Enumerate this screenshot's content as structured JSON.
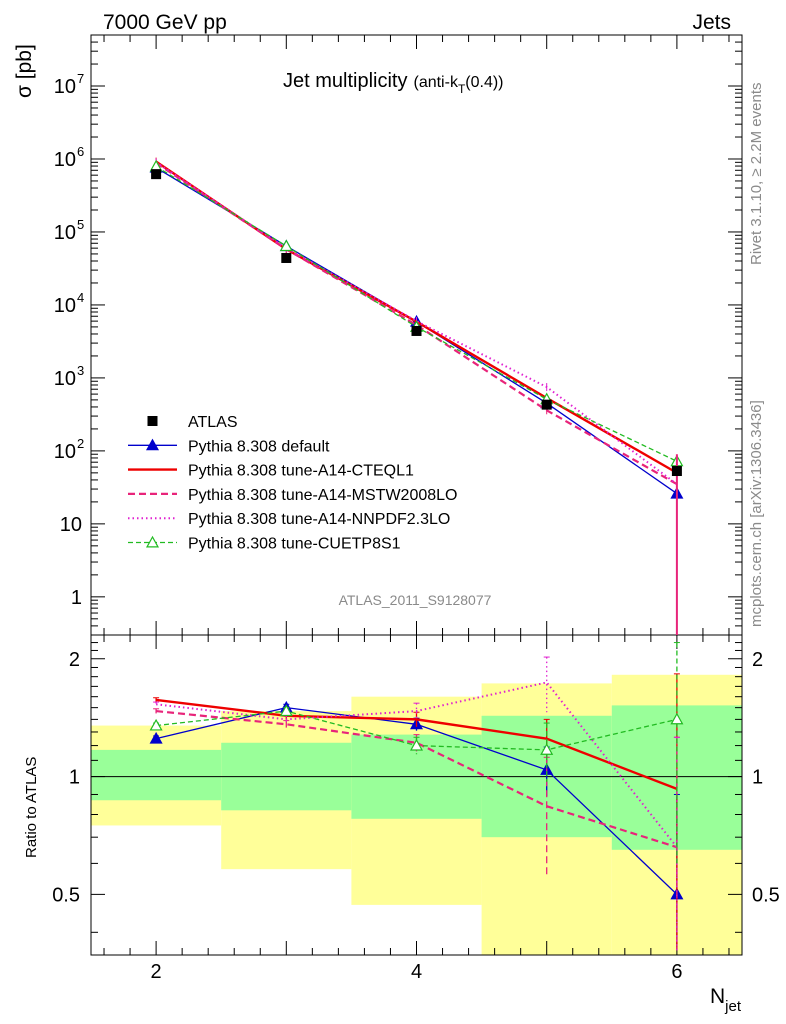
{
  "header": {
    "left": "7000 GeV pp",
    "right": "Jets"
  },
  "side": {
    "rivet": "Rivet 3.1.10, ≥ 2.2M events",
    "mcplots": "mcplots.cern.ch [arXiv:1306.3436]"
  },
  "chart_data": {
    "type": "line",
    "title": "Jet multiplicity",
    "title_sub": "(anti-k",
    "title_sub_T": "T",
    "title_sub_end": "(0.4))",
    "analysis": "ATLAS_2011_S9128077",
    "xlabel": "N",
    "xlabel_sub": "jet",
    "ylabel_main": "σ [pb]",
    "ylabel_ratio": "Ratio to ATLAS",
    "xlim": [
      1.5,
      6.5
    ],
    "ylim_main": [
      0.3,
      50000000
    ],
    "ylim_ratio": [
      0.35,
      2.3
    ],
    "x_ticks": [
      {
        "v": 2,
        "label": "2"
      },
      {
        "v": 4,
        "label": "4"
      },
      {
        "v": 6,
        "label": "6"
      }
    ],
    "y_ticks_main": [
      {
        "v": 1,
        "label": "1"
      },
      {
        "v": 10,
        "label": "10"
      },
      {
        "v": 100,
        "label": "10",
        "exp": "2"
      },
      {
        "v": 1000,
        "label": "10",
        "exp": "3"
      },
      {
        "v": 10000,
        "label": "10",
        "exp": "4"
      },
      {
        "v": 100000,
        "label": "10",
        "exp": "5"
      },
      {
        "v": 1000000,
        "label": "10",
        "exp": "6"
      },
      {
        "v": 10000000,
        "label": "10",
        "exp": "7"
      }
    ],
    "y_ticks_ratio": [
      {
        "v": 0.5,
        "label": "0.5"
      },
      {
        "v": 1,
        "label": "1"
      },
      {
        "v": 2,
        "label": "2"
      }
    ],
    "data": {
      "name": "ATLAS",
      "x": [
        2,
        3,
        4,
        5,
        6
      ],
      "y": [
        620000,
        44000,
        4400,
        430,
        53
      ],
      "xerr": 0.5
    },
    "bands": [
      {
        "x0": 1.5,
        "x1": 2.5,
        "green": [
          0.87,
          1.17
        ],
        "yellow": [
          0.75,
          1.35
        ]
      },
      {
        "x0": 2.5,
        "x1": 3.5,
        "green": [
          0.82,
          1.22
        ],
        "yellow": [
          0.58,
          1.47
        ]
      },
      {
        "x0": 3.5,
        "x1": 4.5,
        "green": [
          0.78,
          1.28
        ],
        "yellow": [
          0.47,
          1.6
        ]
      },
      {
        "x0": 4.5,
        "x1": 5.5,
        "green": [
          0.7,
          1.43
        ],
        "yellow": [
          0.35,
          1.73
        ]
      },
      {
        "x0": 5.5,
        "x1": 6.5,
        "green": [
          0.65,
          1.52
        ],
        "yellow": [
          0.35,
          1.82
        ]
      }
    ],
    "series": [
      {
        "name": "Pythia 8.308 default",
        "color": "#0000cc",
        "dash": "",
        "width": 1.3,
        "marker": "tri-filled",
        "values": [
          760000,
          64000,
          5900,
          450,
          26
        ],
        "ratio": [
          1.25,
          1.5,
          1.36,
          1.04,
          0.5
        ],
        "ratio_err": [
          0.02,
          0.03,
          0.05,
          0.15,
          0.4
        ]
      },
      {
        "name": "Pythia 8.308 tune-A14-CTEQL1",
        "color": "#ee0000",
        "dash": "",
        "width": 2.4,
        "marker": "none",
        "values": [
          920000,
          58000,
          5900,
          530,
          50
        ],
        "ratio": [
          1.57,
          1.43,
          1.4,
          1.25,
          0.93
        ],
        "ratio_err": [
          0.02,
          0.03,
          0.06,
          0.15,
          0.9
        ]
      },
      {
        "name": "Pythia 8.308 tune-A14-MSTW2008LO",
        "color": "#e8247a",
        "dash": "7,4",
        "width": 2.2,
        "marker": "none",
        "values": [
          880000,
          58000,
          5300,
          360,
          35
        ],
        "ratio": [
          1.47,
          1.36,
          1.22,
          0.84,
          0.66
        ],
        "ratio_err": [
          0.02,
          0.03,
          0.06,
          0.28,
          0.6
        ]
      },
      {
        "name": "Pythia 8.308 tune-A14-NNPDF2.3LO",
        "color": "#e020d0",
        "dash": "1.5,3",
        "width": 2.0,
        "marker": "none",
        "values": [
          900000,
          60000,
          6000,
          750,
          35
        ],
        "ratio": [
          1.53,
          1.4,
          1.47,
          1.74,
          0.66
        ],
        "ratio_err": [
          0.02,
          0.03,
          0.07,
          0.28,
          0.6
        ]
      },
      {
        "name": "Pythia 8.308 tune-CUETP8S1",
        "color": "#22bb22",
        "dash": "5,3",
        "width": 1.3,
        "marker": "tri-open",
        "values": [
          790000,
          64000,
          5000,
          510,
          72
        ],
        "ratio": [
          1.35,
          1.47,
          1.2,
          1.17,
          1.4
        ],
        "ratio_err": [
          0.02,
          0.03,
          0.06,
          0.2,
          0.8
        ]
      }
    ]
  }
}
